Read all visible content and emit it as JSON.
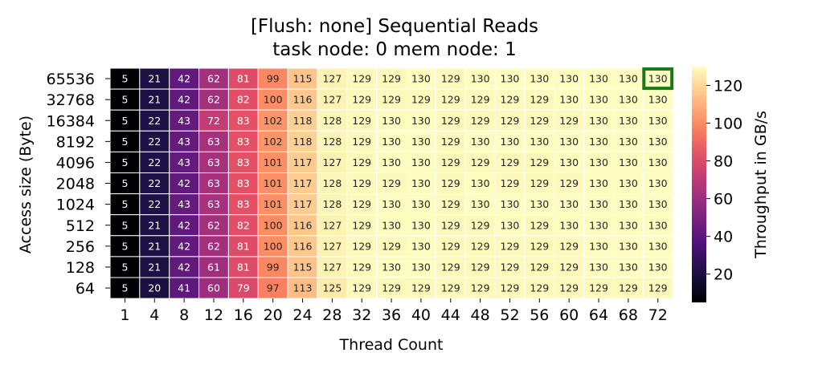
{
  "chart_data": {
    "type": "heatmap",
    "title": "[Flush: none] Sequential Reads",
    "subtitle": "task node: 0 mem node: 1",
    "xlabel": "Thread Count",
    "ylabel": "Access size (Byte)",
    "colorbar_label": "Throughput in GB/s",
    "colormap": "magma",
    "vmin": 5,
    "vmax": 130,
    "colorbar_ticks": [
      20,
      40,
      60,
      80,
      100,
      120
    ],
    "x_categories": [
      "1",
      "4",
      "8",
      "12",
      "16",
      "20",
      "24",
      "28",
      "32",
      "36",
      "40",
      "44",
      "48",
      "52",
      "56",
      "60",
      "64",
      "68",
      "72"
    ],
    "y_categories": [
      "65536",
      "32768",
      "16384",
      "8192",
      "4096",
      "2048",
      "1024",
      "512",
      "256",
      "128",
      "64"
    ],
    "values": [
      [
        5,
        21,
        42,
        62,
        81,
        99,
        115,
        127,
        129,
        129,
        130,
        129,
        130,
        130,
        130,
        130,
        130,
        130,
        130
      ],
      [
        5,
        21,
        42,
        62,
        82,
        100,
        116,
        127,
        129,
        129,
        129,
        129,
        129,
        129,
        129,
        130,
        130,
        130,
        130
      ],
      [
        5,
        22,
        43,
        72,
        83,
        102,
        118,
        128,
        129,
        130,
        130,
        129,
        129,
        129,
        129,
        129,
        130,
        130,
        130
      ],
      [
        5,
        22,
        43,
        63,
        83,
        102,
        118,
        128,
        129,
        130,
        130,
        129,
        130,
        130,
        130,
        130,
        130,
        130,
        130
      ],
      [
        5,
        22,
        43,
        63,
        83,
        101,
        117,
        127,
        129,
        130,
        130,
        129,
        129,
        129,
        129,
        130,
        130,
        130,
        130
      ],
      [
        5,
        22,
        42,
        63,
        83,
        101,
        117,
        128,
        129,
        129,
        130,
        129,
        130,
        129,
        129,
        129,
        130,
        130,
        130
      ],
      [
        5,
        22,
        43,
        63,
        83,
        101,
        117,
        128,
        129,
        130,
        130,
        129,
        130,
        130,
        130,
        130,
        130,
        130,
        130
      ],
      [
        5,
        21,
        42,
        62,
        82,
        100,
        116,
        127,
        129,
        130,
        130,
        129,
        129,
        130,
        129,
        130,
        130,
        130,
        130
      ],
      [
        5,
        21,
        42,
        62,
        81,
        100,
        116,
        127,
        129,
        129,
        130,
        129,
        129,
        129,
        129,
        129,
        130,
        130,
        130
      ],
      [
        5,
        21,
        42,
        61,
        81,
        99,
        115,
        127,
        129,
        130,
        130,
        129,
        129,
        129,
        129,
        129,
        130,
        130,
        130
      ],
      [
        5,
        20,
        41,
        60,
        79,
        97,
        113,
        125,
        129,
        129,
        129,
        129,
        129,
        129,
        129,
        129,
        129,
        129,
        129
      ]
    ],
    "highlight": {
      "row": "65536",
      "col": "72",
      "color": "#1a7a1a"
    }
  }
}
